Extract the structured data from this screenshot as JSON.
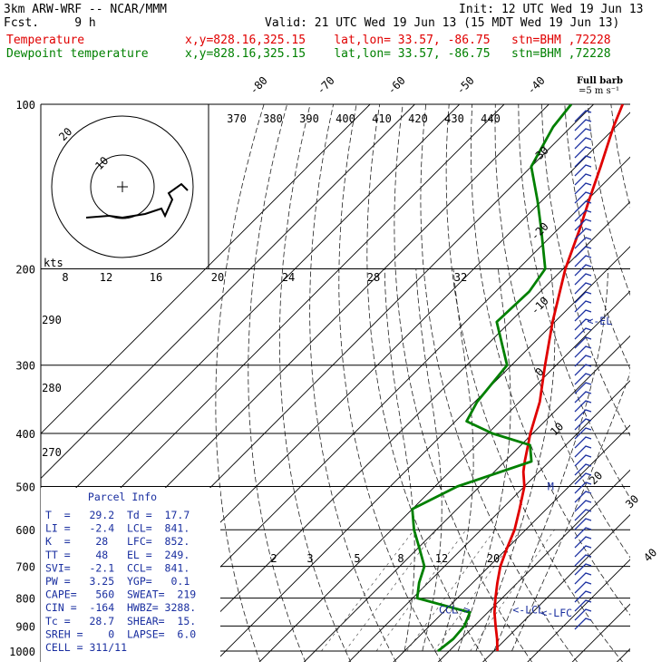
{
  "header": {
    "model": "3km ARW-WRF -- NCAR/MMM",
    "fcst": "Fcst.     9 h",
    "init": "Init: 12 UTC Wed 19 Jun 13",
    "valid": "Valid: 21 UTC Wed 19 Jun 13 (15 MDT Wed 19 Jun 13)",
    "temp_label": "Temperature",
    "temp_loc": "x,y=828.16,325.15    lat,lon= 33.57, -86.75   stn=BHM ,72228",
    "dew_label": "Dewpoint temperature",
    "dew_loc": "x,y=828.16,325.15    lat,lon= 33.57, -86.75   stn=BHM ,72228",
    "full_barb_1": "Full barb",
    "full_barb_2": "=5 m s⁻¹"
  },
  "colors": {
    "temperature": "#e00000",
    "dewpoint": "#008000",
    "annotation": "#1a2fa0",
    "barb": "#1a2fa0"
  },
  "chart_data": {
    "type": "line",
    "title": "Skew-T log-p sounding",
    "pressure_levels": [
      100,
      200,
      300,
      400,
      500,
      600,
      700,
      800,
      900,
      1000
    ],
    "pressure_labels": [
      "100",
      "200",
      "300",
      "400",
      "500",
      "600",
      "700",
      "800",
      "900",
      "1000"
    ],
    "isotherm_labels": [
      "-80",
      "-70",
      "-60",
      "-50",
      "-40",
      "-30",
      "-20",
      "-10",
      "0",
      "10",
      "20",
      "30",
      "40"
    ],
    "theta_labels": [
      "370",
      "380",
      "390",
      "400",
      "410",
      "420",
      "430",
      "440"
    ],
    "theta_e_labels": [
      "290",
      "280",
      "270"
    ],
    "mixing_ratio_labels": [
      "2",
      "3",
      "5",
      "8",
      "12",
      "20"
    ],
    "hodograph_speed_labels": [
      "8",
      "12",
      "16",
      "20",
      "24",
      "28",
      "32"
    ],
    "hodograph": {
      "units": "kts",
      "ring_labels": [
        "10",
        "20"
      ]
    },
    "series": [
      {
        "name": "Temperature",
        "color": "#e00000",
        "points": [
          [
            1000,
            30.8
          ],
          [
            950,
            28
          ],
          [
            900,
            24.8
          ],
          [
            850,
            21.5
          ],
          [
            800,
            18.5
          ],
          [
            750,
            15.5
          ],
          [
            700,
            12.5
          ],
          [
            650,
            10
          ],
          [
            600,
            7.5
          ],
          [
            550,
            4
          ],
          [
            500,
            0
          ],
          [
            470,
            -3.5
          ],
          [
            450,
            -5.5
          ],
          [
            400,
            -10.5
          ],
          [
            350,
            -15.5
          ],
          [
            300,
            -22.5
          ],
          [
            250,
            -30.5
          ],
          [
            200,
            -39.5
          ],
          [
            170,
            -45
          ],
          [
            150,
            -49.5
          ],
          [
            130,
            -54.5
          ],
          [
            110,
            -60.5
          ],
          [
            100,
            -63.5
          ]
        ]
      },
      {
        "name": "Dewpoint temperature",
        "color": "#008000",
        "points": [
          [
            1000,
            17.5
          ],
          [
            950,
            18.2
          ],
          [
            900,
            17.8
          ],
          [
            850,
            16
          ],
          [
            800,
            1
          ],
          [
            750,
            -2
          ],
          [
            700,
            -4.5
          ],
          [
            650,
            -9.5
          ],
          [
            600,
            -15
          ],
          [
            550,
            -20
          ],
          [
            500,
            -15
          ],
          [
            450,
            -4
          ],
          [
            420,
            -8
          ],
          [
            400,
            -19
          ],
          [
            380,
            -27.5
          ],
          [
            350,
            -29.5
          ],
          [
            300,
            -31
          ],
          [
            250,
            -43
          ],
          [
            220,
            -42.5
          ],
          [
            200,
            -44
          ],
          [
            170,
            -53.5
          ],
          [
            150,
            -61
          ],
          [
            130,
            -70
          ],
          [
            110,
            -74
          ],
          [
            100,
            -75
          ]
        ]
      }
    ],
    "annotations": [
      {
        "label": "<-EL",
        "p": 249,
        "t": -23
      },
      {
        "label": "M",
        "p": 500,
        "t": 5.2
      },
      {
        "label": "CCL->",
        "p": 841,
        "t": 8.5
      },
      {
        "label": "<-LCL",
        "p": 841,
        "t": 25
      },
      {
        "label": "<-LFC",
        "p": 852,
        "t": 32
      }
    ]
  },
  "parcel_info": {
    "title": "Parcel Info",
    "rows": [
      "T  =   29.2  Td =  17.7",
      "LI =   -2.4  LCL=  841.",
      "K  =    28   LFC=  852.",
      "TT =    48   EL =  249.",
      "SVI=   -2.1  CCL=  841.",
      "PW =   3.25  YGP=   0.1",
      "CAPE=   560  SWEAT=  219",
      "CIN =  -164  HWBZ= 3288.",
      "Tc =   28.7  SHEAR=  15.",
      "SREH =    0  LAPSE=  6.0",
      "CELL = 311/11"
    ]
  }
}
